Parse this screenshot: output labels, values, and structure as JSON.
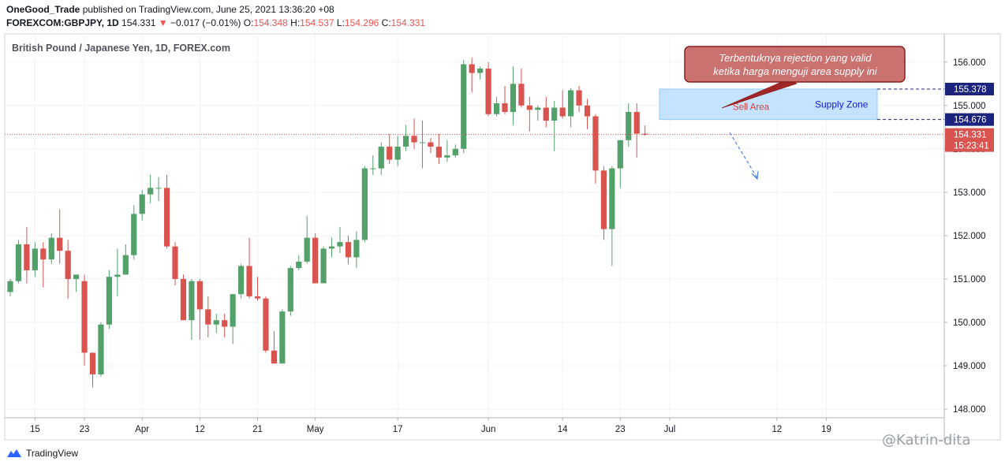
{
  "header": {
    "author": "OneGood_Trade",
    "published_text": "published on TradingView.com, June 25, 2021 13:36:20 +08",
    "symbol": "FOREXCOM:GBPJPY, 1D",
    "last": "154.331",
    "change_arrow": "▼",
    "change": "−0.017 (−0.01%)",
    "o_label": "O:",
    "o": "154.348",
    "h_label": "H:",
    "h": "154.537",
    "l_label": "L:",
    "l": "154.296",
    "c_label": "C:",
    "c": "154.331"
  },
  "footer": {
    "brand": "TradingView",
    "watermark": "@Katrin-dita"
  },
  "chart_data": {
    "type": "candlestick",
    "title": "British Pound / Japanese Yen, 1D, FOREX.com",
    "up_color": "#53a06a",
    "down_color": "#d9534f",
    "ylim": [
      147.8,
      156.65
    ],
    "y_ticks": [
      "148.000",
      "149.000",
      "150.000",
      "151.000",
      "152.000",
      "153.000",
      "154.000",
      "155.000",
      "156.000"
    ],
    "y_tick_values": [
      148,
      149,
      150,
      151,
      152,
      153,
      154,
      155,
      156
    ],
    "x_ticks": [
      {
        "label": "15",
        "i": 3
      },
      {
        "label": "23",
        "i": 9
      },
      {
        "label": "Apr",
        "i": 16
      },
      {
        "label": "12",
        "i": 23
      },
      {
        "label": "21",
        "i": 30
      },
      {
        "label": "May",
        "i": 37
      },
      {
        "label": "17",
        "i": 47
      },
      {
        "label": "Jun",
        "i": 58
      },
      {
        "label": "14",
        "i": 67
      },
      {
        "label": "23",
        "i": 74
      },
      {
        "label": "Jul",
        "i": 80
      },
      {
        "label": "12",
        "i": 93
      },
      {
        "label": "19",
        "i": 99
      }
    ],
    "candles": [
      [
        150.7,
        151.0,
        150.6,
        150.95
      ],
      [
        150.95,
        151.9,
        150.9,
        151.8
      ],
      [
        151.8,
        152.2,
        150.9,
        151.2
      ],
      [
        151.2,
        151.85,
        151.05,
        151.7
      ],
      [
        151.7,
        151.85,
        150.8,
        151.45
      ],
      [
        151.45,
        152.05,
        151.35,
        151.95
      ],
      [
        151.95,
        152.6,
        151.35,
        151.65
      ],
      [
        151.65,
        151.9,
        150.55,
        151.0
      ],
      [
        151.0,
        151.1,
        150.7,
        151.1
      ],
      [
        150.95,
        151.1,
        149.0,
        149.3
      ],
      [
        149.3,
        149.3,
        148.5,
        148.8
      ],
      [
        148.8,
        150.0,
        148.75,
        149.95
      ],
      [
        149.95,
        151.2,
        149.85,
        151.05
      ],
      [
        151.05,
        151.7,
        150.6,
        151.1
      ],
      [
        151.1,
        151.8,
        151.1,
        151.55
      ],
      [
        151.55,
        152.7,
        151.45,
        152.5
      ],
      [
        152.5,
        153.05,
        152.35,
        152.95
      ],
      [
        152.95,
        153.4,
        152.75,
        153.1
      ],
      [
        153.1,
        153.35,
        152.8,
        153.1
      ],
      [
        153.1,
        153.4,
        151.7,
        151.75
      ],
      [
        151.75,
        151.85,
        150.85,
        151.0
      ],
      [
        151.0,
        151.1,
        150.05,
        150.05
      ],
      [
        150.05,
        151.0,
        149.6,
        150.95
      ],
      [
        150.95,
        151.0,
        149.6,
        150.3
      ],
      [
        150.3,
        150.6,
        149.65,
        149.95
      ],
      [
        149.95,
        150.2,
        149.75,
        150.05
      ],
      [
        150.05,
        150.2,
        149.65,
        149.9
      ],
      [
        149.9,
        150.65,
        149.5,
        150.65
      ],
      [
        150.65,
        151.35,
        150.55,
        151.3
      ],
      [
        151.3,
        151.95,
        150.55,
        150.6
      ],
      [
        150.6,
        151.05,
        150.5,
        150.55
      ],
      [
        150.55,
        150.6,
        149.3,
        149.35
      ],
      [
        149.35,
        149.8,
        149.05,
        149.05
      ],
      [
        149.05,
        150.3,
        149.05,
        150.25
      ],
      [
        150.25,
        151.3,
        150.15,
        151.25
      ],
      [
        151.25,
        151.55,
        151.2,
        151.4
      ],
      [
        151.4,
        152.45,
        151.35,
        151.95
      ],
      [
        151.95,
        152.05,
        150.9,
        150.9
      ],
      [
        150.9,
        151.75,
        150.9,
        151.7
      ],
      [
        151.7,
        151.95,
        151.5,
        151.75
      ],
      [
        151.75,
        152.2,
        151.6,
        151.85
      ],
      [
        151.85,
        152.0,
        151.35,
        151.5
      ],
      [
        151.5,
        152.1,
        151.25,
        151.9
      ],
      [
        151.9,
        153.6,
        151.85,
        153.55
      ],
      [
        153.55,
        153.85,
        153.4,
        153.55
      ],
      [
        153.55,
        154.15,
        153.4,
        154.05
      ],
      [
        154.05,
        154.35,
        153.65,
        153.75
      ],
      [
        153.75,
        154.3,
        153.6,
        154.05
      ],
      [
        154.05,
        154.55,
        153.95,
        154.3
      ],
      [
        154.3,
        154.7,
        154.0,
        154.15
      ],
      [
        154.15,
        154.65,
        153.55,
        154.15
      ],
      [
        154.15,
        154.25,
        153.9,
        154.05
      ],
      [
        154.05,
        154.35,
        153.65,
        153.8
      ],
      [
        153.8,
        154.2,
        153.7,
        153.85
      ],
      [
        153.85,
        154.1,
        153.8,
        154.0
      ],
      [
        154.0,
        156.05,
        153.9,
        155.95
      ],
      [
        155.95,
        156.1,
        155.3,
        155.75
      ],
      [
        155.75,
        155.9,
        155.6,
        155.85
      ],
      [
        155.85,
        156.0,
        154.75,
        154.8
      ],
      [
        154.8,
        155.2,
        154.75,
        155.05
      ],
      [
        155.05,
        155.45,
        154.8,
        154.85
      ],
      [
        154.85,
        155.9,
        154.55,
        155.5
      ],
      [
        155.5,
        155.85,
        154.95,
        155.0
      ],
      [
        155.0,
        155.2,
        154.4,
        154.9
      ],
      [
        154.9,
        155.0,
        154.65,
        154.95
      ],
      [
        154.95,
        155.2,
        154.5,
        154.65
      ],
      [
        154.65,
        155.1,
        153.95,
        154.95
      ],
      [
        154.95,
        155.35,
        154.7,
        154.75
      ],
      [
        154.75,
        155.4,
        154.5,
        155.35
      ],
      [
        155.35,
        155.45,
        154.85,
        155.0
      ],
      [
        155.0,
        155.15,
        154.45,
        154.75
      ],
      [
        154.75,
        154.8,
        153.2,
        153.5
      ],
      [
        153.5,
        153.6,
        151.9,
        152.15
      ],
      [
        152.15,
        153.6,
        151.3,
        153.55
      ],
      [
        153.55,
        154.2,
        153.1,
        154.2
      ],
      [
        154.2,
        155.05,
        154.05,
        154.85
      ],
      [
        154.85,
        155.05,
        153.8,
        154.35
      ],
      [
        154.35,
        154.54,
        154.3,
        154.33
      ]
    ],
    "current_price": 154.331,
    "current_price_label": "154.331",
    "countdown": "15:23:41",
    "zone_top_label": "155.378",
    "zone_top": 155.378,
    "zone_bottom_label": "154.676",
    "zone_bottom": 154.676,
    "annotations": {
      "supply_zone": "Supply Zone",
      "sell_area": "Sell Area",
      "callout_line1": "Terbentuknya rejection yang valid",
      "callout_line2": "ketika harga menguji area supply ini"
    }
  }
}
